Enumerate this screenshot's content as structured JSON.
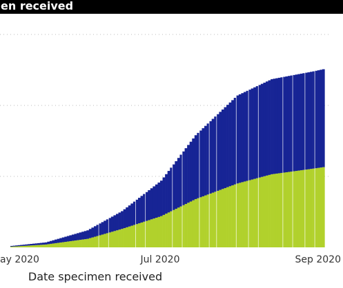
{
  "chart_data": {
    "type": "area",
    "title": "en received",
    "xlabel": "Date specimen received",
    "ylabel": "",
    "x_ticks": [
      "ay 2020",
      "Jul 2020",
      "Sep 2020"
    ],
    "x_tick_dates": [
      "2020-05-01",
      "2020-07-01",
      "2020-09-01"
    ],
    "x_range": [
      "2020-05-01",
      "2020-09-05"
    ],
    "stacked": true,
    "grid": "horizontal-dotted",
    "legend": "none",
    "series": [
      {
        "color": "#b1d12c",
        "points": [
          [
            "2020-05-01",
            0.1
          ],
          [
            "2020-05-15",
            0.4
          ],
          [
            "2020-06-01",
            1.2
          ],
          [
            "2020-06-15",
            2.6
          ],
          [
            "2020-07-01",
            4.4
          ],
          [
            "2020-07-15",
            6.8
          ],
          [
            "2020-08-01",
            9.0
          ],
          [
            "2020-08-15",
            10.3
          ],
          [
            "2020-09-01",
            11.1
          ],
          [
            "2020-09-05",
            11.3
          ]
        ]
      },
      {
        "color": "#172495",
        "points": [
          [
            "2020-05-01",
            0.1
          ],
          [
            "2020-05-15",
            0.3
          ],
          [
            "2020-06-01",
            1.2
          ],
          [
            "2020-06-15",
            2.5
          ],
          [
            "2020-07-01",
            5.0
          ],
          [
            "2020-07-15",
            9.0
          ],
          [
            "2020-08-01",
            12.4
          ],
          [
            "2020-08-15",
            13.4
          ],
          [
            "2020-09-01",
            13.7
          ],
          [
            "2020-09-05",
            13.8
          ]
        ]
      }
    ],
    "y_gridlines": [
      0,
      10,
      20,
      30
    ],
    "ylim": [
      0,
      30
    ]
  }
}
